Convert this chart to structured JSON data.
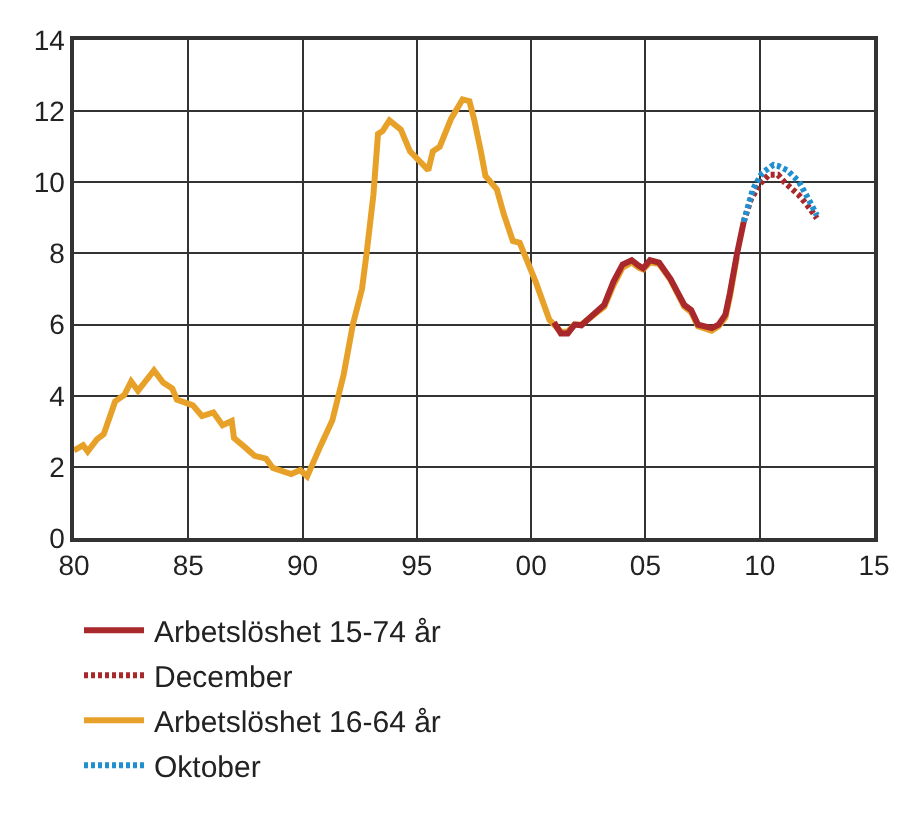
{
  "chart_data": {
    "type": "line",
    "xlim": [
      1980,
      2015
    ],
    "ylim": [
      0,
      14
    ],
    "xticks": [
      {
        "value": 1980,
        "label": "80"
      },
      {
        "value": 1985,
        "label": "85"
      },
      {
        "value": 1990,
        "label": "90"
      },
      {
        "value": 1995,
        "label": "95"
      },
      {
        "value": 2000,
        "label": "00"
      },
      {
        "value": 2005,
        "label": "05"
      },
      {
        "value": 2010,
        "label": "10"
      },
      {
        "value": 2015,
        "label": "15"
      }
    ],
    "yticks": [
      0,
      2,
      4,
      6,
      8,
      10,
      12,
      14
    ],
    "grid": true,
    "legend": "bottom",
    "line_style": "solid",
    "marker": "none",
    "series": [
      {
        "name": "Arbetslöshet 15-74 år",
        "color": "#a8282b",
        "x": [
          2001.0,
          2001.3,
          2001.6,
          2001.9,
          2002.2,
          2002.6,
          2003.2,
          2003.6,
          2004.0,
          2004.4,
          2004.7,
          2004.9,
          2005.2,
          2005.6,
          2006.1,
          2006.7,
          2007.0,
          2007.3,
          2007.9,
          2008.2,
          2008.5,
          2008.7,
          2009.0,
          2009.3
        ],
        "values": [
          6.06,
          5.75,
          5.75,
          6.0,
          5.98,
          6.21,
          6.56,
          7.2,
          7.69,
          7.81,
          7.66,
          7.58,
          7.81,
          7.74,
          7.28,
          6.55,
          6.41,
          6.0,
          5.9,
          6.0,
          6.28,
          6.9,
          7.97,
          8.89
        ]
      },
      {
        "name": "Arbetslöshet 16-64 år",
        "color": "#e8a128",
        "x": [
          1980.0,
          1980.4,
          1980.6,
          1981.0,
          1981.3,
          1981.8,
          1982.2,
          1982.5,
          1982.8,
          1983.5,
          1983.9,
          1984.3,
          1984.5,
          1985.2,
          1985.6,
          1986.1,
          1986.5,
          1986.9,
          1987.0,
          1987.5,
          1987.9,
          1988.4,
          1988.7,
          1989.5,
          1989.9,
          1990.2,
          1990.8,
          1991.3,
          1991.8,
          1992.2,
          1992.6,
          1992.8,
          1993.1,
          1993.3,
          1993.5,
          1993.8,
          1994.3,
          1994.7,
          1995.5,
          1995.7,
          1996.0,
          1996.5,
          1997.0,
          1997.3,
          1997.5,
          1997.8,
          1998.0,
          1998.5,
          1998.8,
          1999.2,
          1999.5,
          2000.2,
          2000.8,
          2001.3,
          2001.6,
          2001.9,
          2002.2,
          2002.6,
          2003.2,
          2003.6,
          2004.0,
          2004.4,
          2004.7,
          2004.9,
          2005.2,
          2005.6,
          2006.1,
          2006.7,
          2007.0,
          2007.3,
          2007.9,
          2008.2,
          2008.5,
          2008.7,
          2009.0
        ],
        "values": [
          2.46,
          2.61,
          2.43,
          2.77,
          2.92,
          3.84,
          4.02,
          4.4,
          4.14,
          4.71,
          4.37,
          4.2,
          3.89,
          3.73,
          3.43,
          3.53,
          3.17,
          3.29,
          2.81,
          2.54,
          2.31,
          2.23,
          1.97,
          1.8,
          1.91,
          1.73,
          2.61,
          3.3,
          4.6,
          6.0,
          7.0,
          8.0,
          9.65,
          11.36,
          11.44,
          11.74,
          11.48,
          10.87,
          10.34,
          10.87,
          11.0,
          11.79,
          12.33,
          12.28,
          11.79,
          10.87,
          10.18,
          9.8,
          9.11,
          8.35,
          8.3,
          7.2,
          6.13,
          5.8,
          5.8,
          6.0,
          6.0,
          6.2,
          6.5,
          7.1,
          7.6,
          7.75,
          7.6,
          7.55,
          7.75,
          7.7,
          7.25,
          6.5,
          6.35,
          5.95,
          5.83,
          5.95,
          6.2,
          6.8,
          7.9
        ]
      },
      {
        "name": "December",
        "color": "#a8282b",
        "line_style": "dotted",
        "x": [
          2009.3,
          2009.6,
          2010.0,
          2010.4,
          2010.8,
          2011.1,
          2011.7,
          2012.1,
          2012.5
        ],
        "values": [
          8.89,
          9.5,
          9.95,
          10.21,
          10.21,
          9.99,
          9.65,
          9.34,
          8.99
        ]
      },
      {
        "name": "Oktober",
        "color": "#1f8fd0",
        "line_style": "dotted",
        "x": [
          2009.3,
          2009.7,
          2010.1,
          2010.6,
          2010.8,
          2011.2,
          2011.7,
          2012.1,
          2012.5
        ],
        "values": [
          8.89,
          9.8,
          10.26,
          10.49,
          10.46,
          10.34,
          10.03,
          9.57,
          9.07
        ]
      }
    ]
  }
}
